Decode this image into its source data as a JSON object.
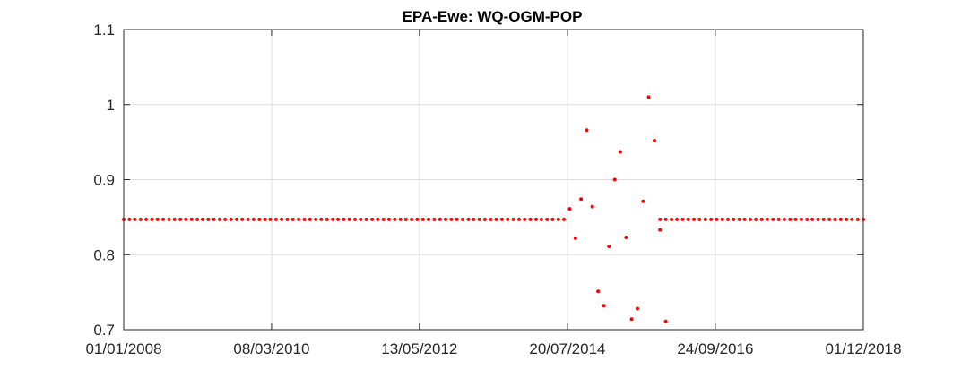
{
  "chart_data": {
    "type": "scatter",
    "title": "EPA-Ewe: WQ-OGM-POP",
    "xlabel": "",
    "ylabel": "",
    "x_axis_type": "date",
    "xlim": [
      "2008-01-01",
      "2018-12-01"
    ],
    "ylim": [
      0.7,
      1.1
    ],
    "x_ticks": [
      "2008-01-01",
      "2010-03-08",
      "2012-05-13",
      "2014-07-20",
      "2016-09-24",
      "2018-12-01"
    ],
    "x_tick_labels": [
      "01/01/2008",
      "08/03/2010",
      "13/05/2012",
      "20/07/2014",
      "24/09/2016",
      "01/12/2018"
    ],
    "y_ticks": [
      0.7,
      0.8,
      0.9,
      1.0,
      1.1
    ],
    "y_tick_labels": [
      "0.7",
      "0.8",
      "0.9",
      "1",
      "1.1"
    ],
    "grid": true,
    "marker_color": "#ff0000",
    "series": [
      {
        "name": "",
        "constant_segments": [
          {
            "start": "2008-01-01",
            "end": "2014-07-01",
            "step_months": 1,
            "y": 0.847
          },
          {
            "start": "2015-12-01",
            "end": "2018-12-01",
            "step_months": 1,
            "y": 0.847
          }
        ],
        "points": [
          {
            "x": "2014-08-01",
            "y": 0.861
          },
          {
            "x": "2014-09-01",
            "y": 0.822
          },
          {
            "x": "2014-10-01",
            "y": 0.874
          },
          {
            "x": "2014-11-01",
            "y": 0.966
          },
          {
            "x": "2014-12-01",
            "y": 0.864
          },
          {
            "x": "2015-01-01",
            "y": 0.751
          },
          {
            "x": "2015-02-01",
            "y": 0.732
          },
          {
            "x": "2015-03-01",
            "y": 0.811
          },
          {
            "x": "2015-04-01",
            "y": 0.9
          },
          {
            "x": "2015-05-01",
            "y": 0.937
          },
          {
            "x": "2015-06-01",
            "y": 0.823
          },
          {
            "x": "2015-07-01",
            "y": 0.714
          },
          {
            "x": "2015-08-01",
            "y": 0.728
          },
          {
            "x": "2015-09-01",
            "y": 0.871
          },
          {
            "x": "2015-10-01",
            "y": 1.01
          },
          {
            "x": "2015-11-01",
            "y": 0.952
          },
          {
            "x": "2015-12-01",
            "y": 0.833
          },
          {
            "x": "2016-01-01",
            "y": 0.711
          }
        ]
      }
    ]
  }
}
